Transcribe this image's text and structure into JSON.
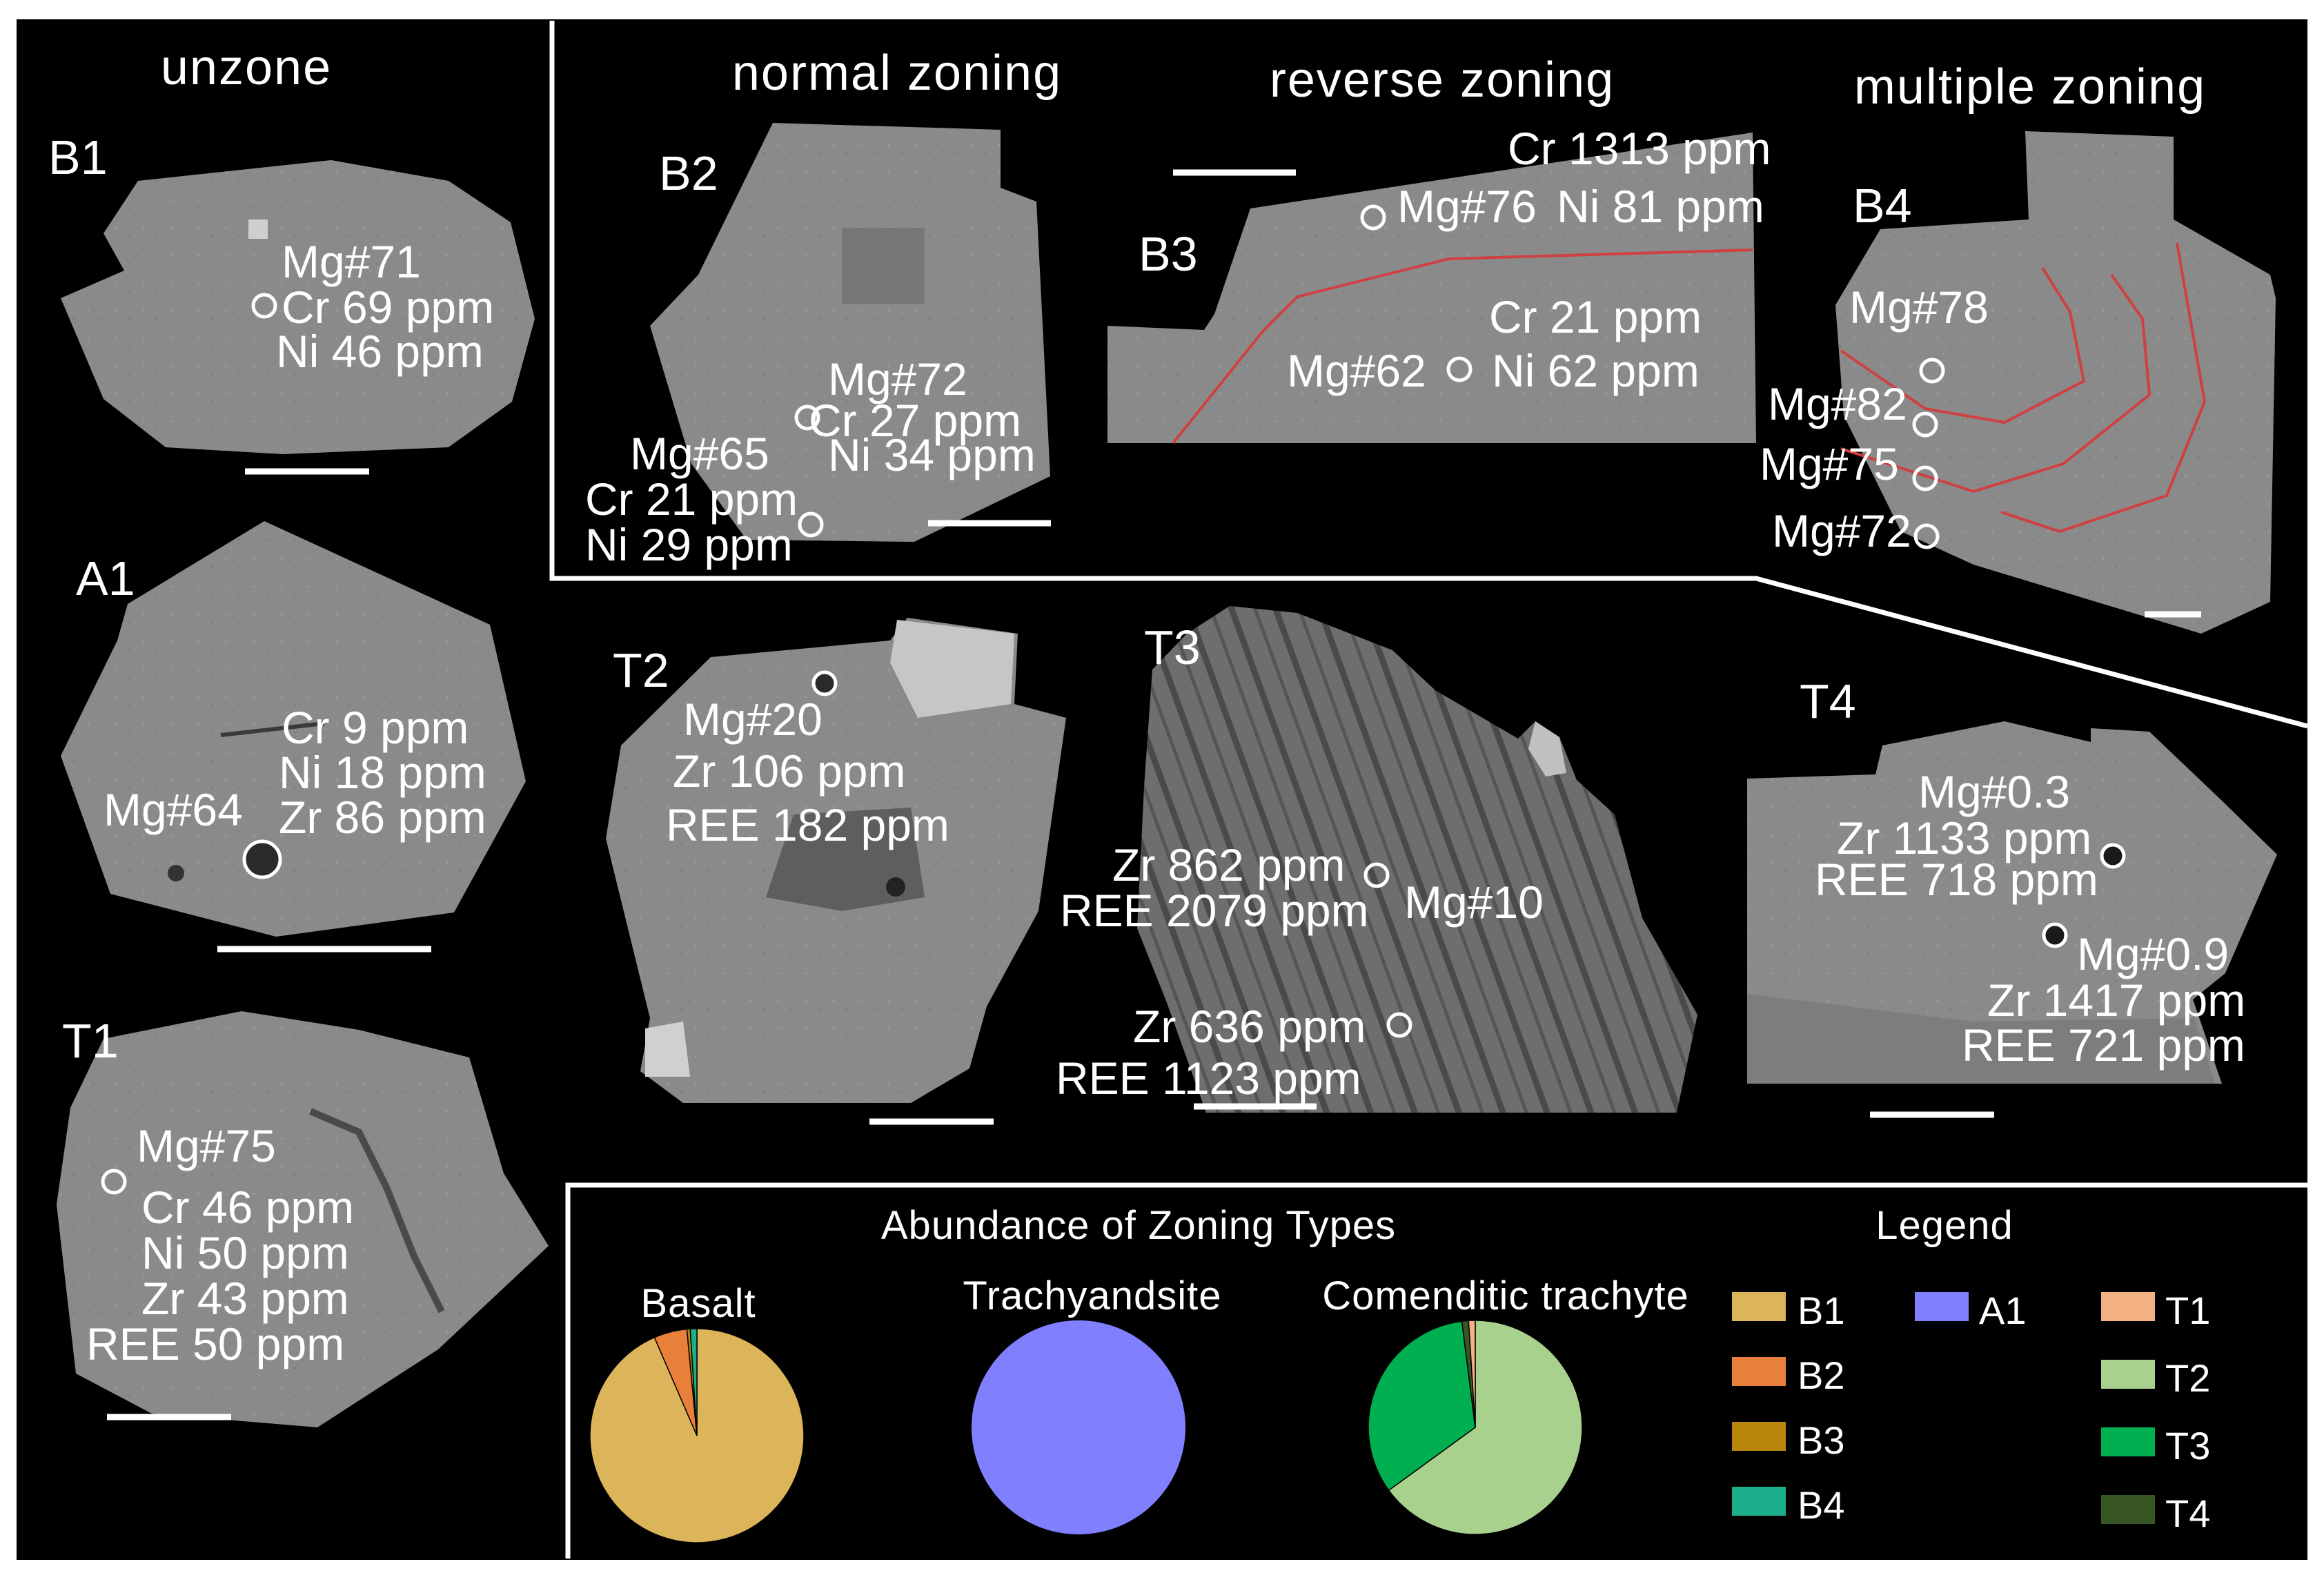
{
  "sections": {
    "unzone": "unzone",
    "normal": "normal zoning",
    "reverse": "reverse zoning",
    "multiple": "multiple zoning"
  },
  "grains": {
    "B1": {
      "id": "B1",
      "l1": "Mg#71",
      "l2": "Cr 69 ppm",
      "l3": "Ni 46 ppm"
    },
    "A1": {
      "id": "A1",
      "mg": "Mg#64",
      "l1": "Cr 9 ppm",
      "l2": "Ni 18 ppm",
      "l3": "Zr 86 ppm"
    },
    "T1": {
      "id": "T1",
      "l1": "Mg#75",
      "l2": "Cr 46 ppm",
      "l3": "Ni 50 ppm",
      "l4": "Zr 43 ppm",
      "l5": "REE 50 ppm"
    },
    "B2": {
      "id": "B2",
      "a1": "Mg#72",
      "a2": "Cr 27 ppm",
      "a3": "Ni 34 ppm",
      "b1": "Mg#65",
      "b2": "Cr 21 ppm",
      "b3": "Ni 29 ppm"
    },
    "B3": {
      "id": "B3",
      "a1": "Cr 1313 ppm",
      "a2": "Mg#76",
      "a3": "Ni 81 ppm",
      "b1": "Cr 21 ppm",
      "b2": "Mg#62",
      "b3": "Ni 62 ppm"
    },
    "B4": {
      "id": "B4",
      "l1": "Mg#78",
      "l2": "Mg#82",
      "l3": "Mg#75",
      "l4": "Mg#72"
    },
    "T2": {
      "id": "T2",
      "l1": "Mg#20",
      "l2": "Zr 106 ppm",
      "l3": "REE 182 ppm"
    },
    "T3": {
      "id": "T3",
      "a1": "Zr 862 ppm",
      "a2": "REE 2079 ppm",
      "a3": "Mg#10",
      "b1": "Zr 636 ppm",
      "b2": "REE 1123 ppm"
    },
    "T4": {
      "id": "T4",
      "a1": "Mg#0.3",
      "a2": "Zr 1133 ppm",
      "a3": "REE 718 ppm",
      "b1": "Mg#0.9",
      "b2": "Zr 1417 ppm",
      "b3": "REE 721 ppm"
    }
  },
  "abundance": {
    "title": "Abundance of Zoning Types",
    "pies": [
      {
        "name": "Basalt",
        "slices": [
          {
            "type": "B1",
            "pct": 93.5
          },
          {
            "type": "B2",
            "pct": 5.0
          },
          {
            "type": "B3",
            "pct": 0.5
          },
          {
            "type": "B4",
            "pct": 1.0
          }
        ]
      },
      {
        "name": "Trachyandsite",
        "slices": [
          {
            "type": "A1",
            "pct": 100
          }
        ]
      },
      {
        "name": "Comenditic trachyte",
        "slices": [
          {
            "type": "T2",
            "pct": 65.0
          },
          {
            "type": "T3",
            "pct": 33.0
          },
          {
            "type": "T4",
            "pct": 1.0
          },
          {
            "type": "T1",
            "pct": 1.0
          }
        ]
      }
    ],
    "legend_title": "Legend",
    "legend": [
      {
        "type": "B1",
        "color": "#dcb55a"
      },
      {
        "type": "B2",
        "color": "#e8803a"
      },
      {
        "type": "B3",
        "color": "#b8860b"
      },
      {
        "type": "B4",
        "color": "#1aaf8a"
      },
      {
        "type": "A1",
        "color": "#8080ff"
      },
      {
        "type": "T1",
        "color": "#f4b183"
      },
      {
        "type": "T2",
        "color": "#a9d18e"
      },
      {
        "type": "T3",
        "color": "#00b050"
      },
      {
        "type": "T4",
        "color": "#375623"
      }
    ]
  }
}
